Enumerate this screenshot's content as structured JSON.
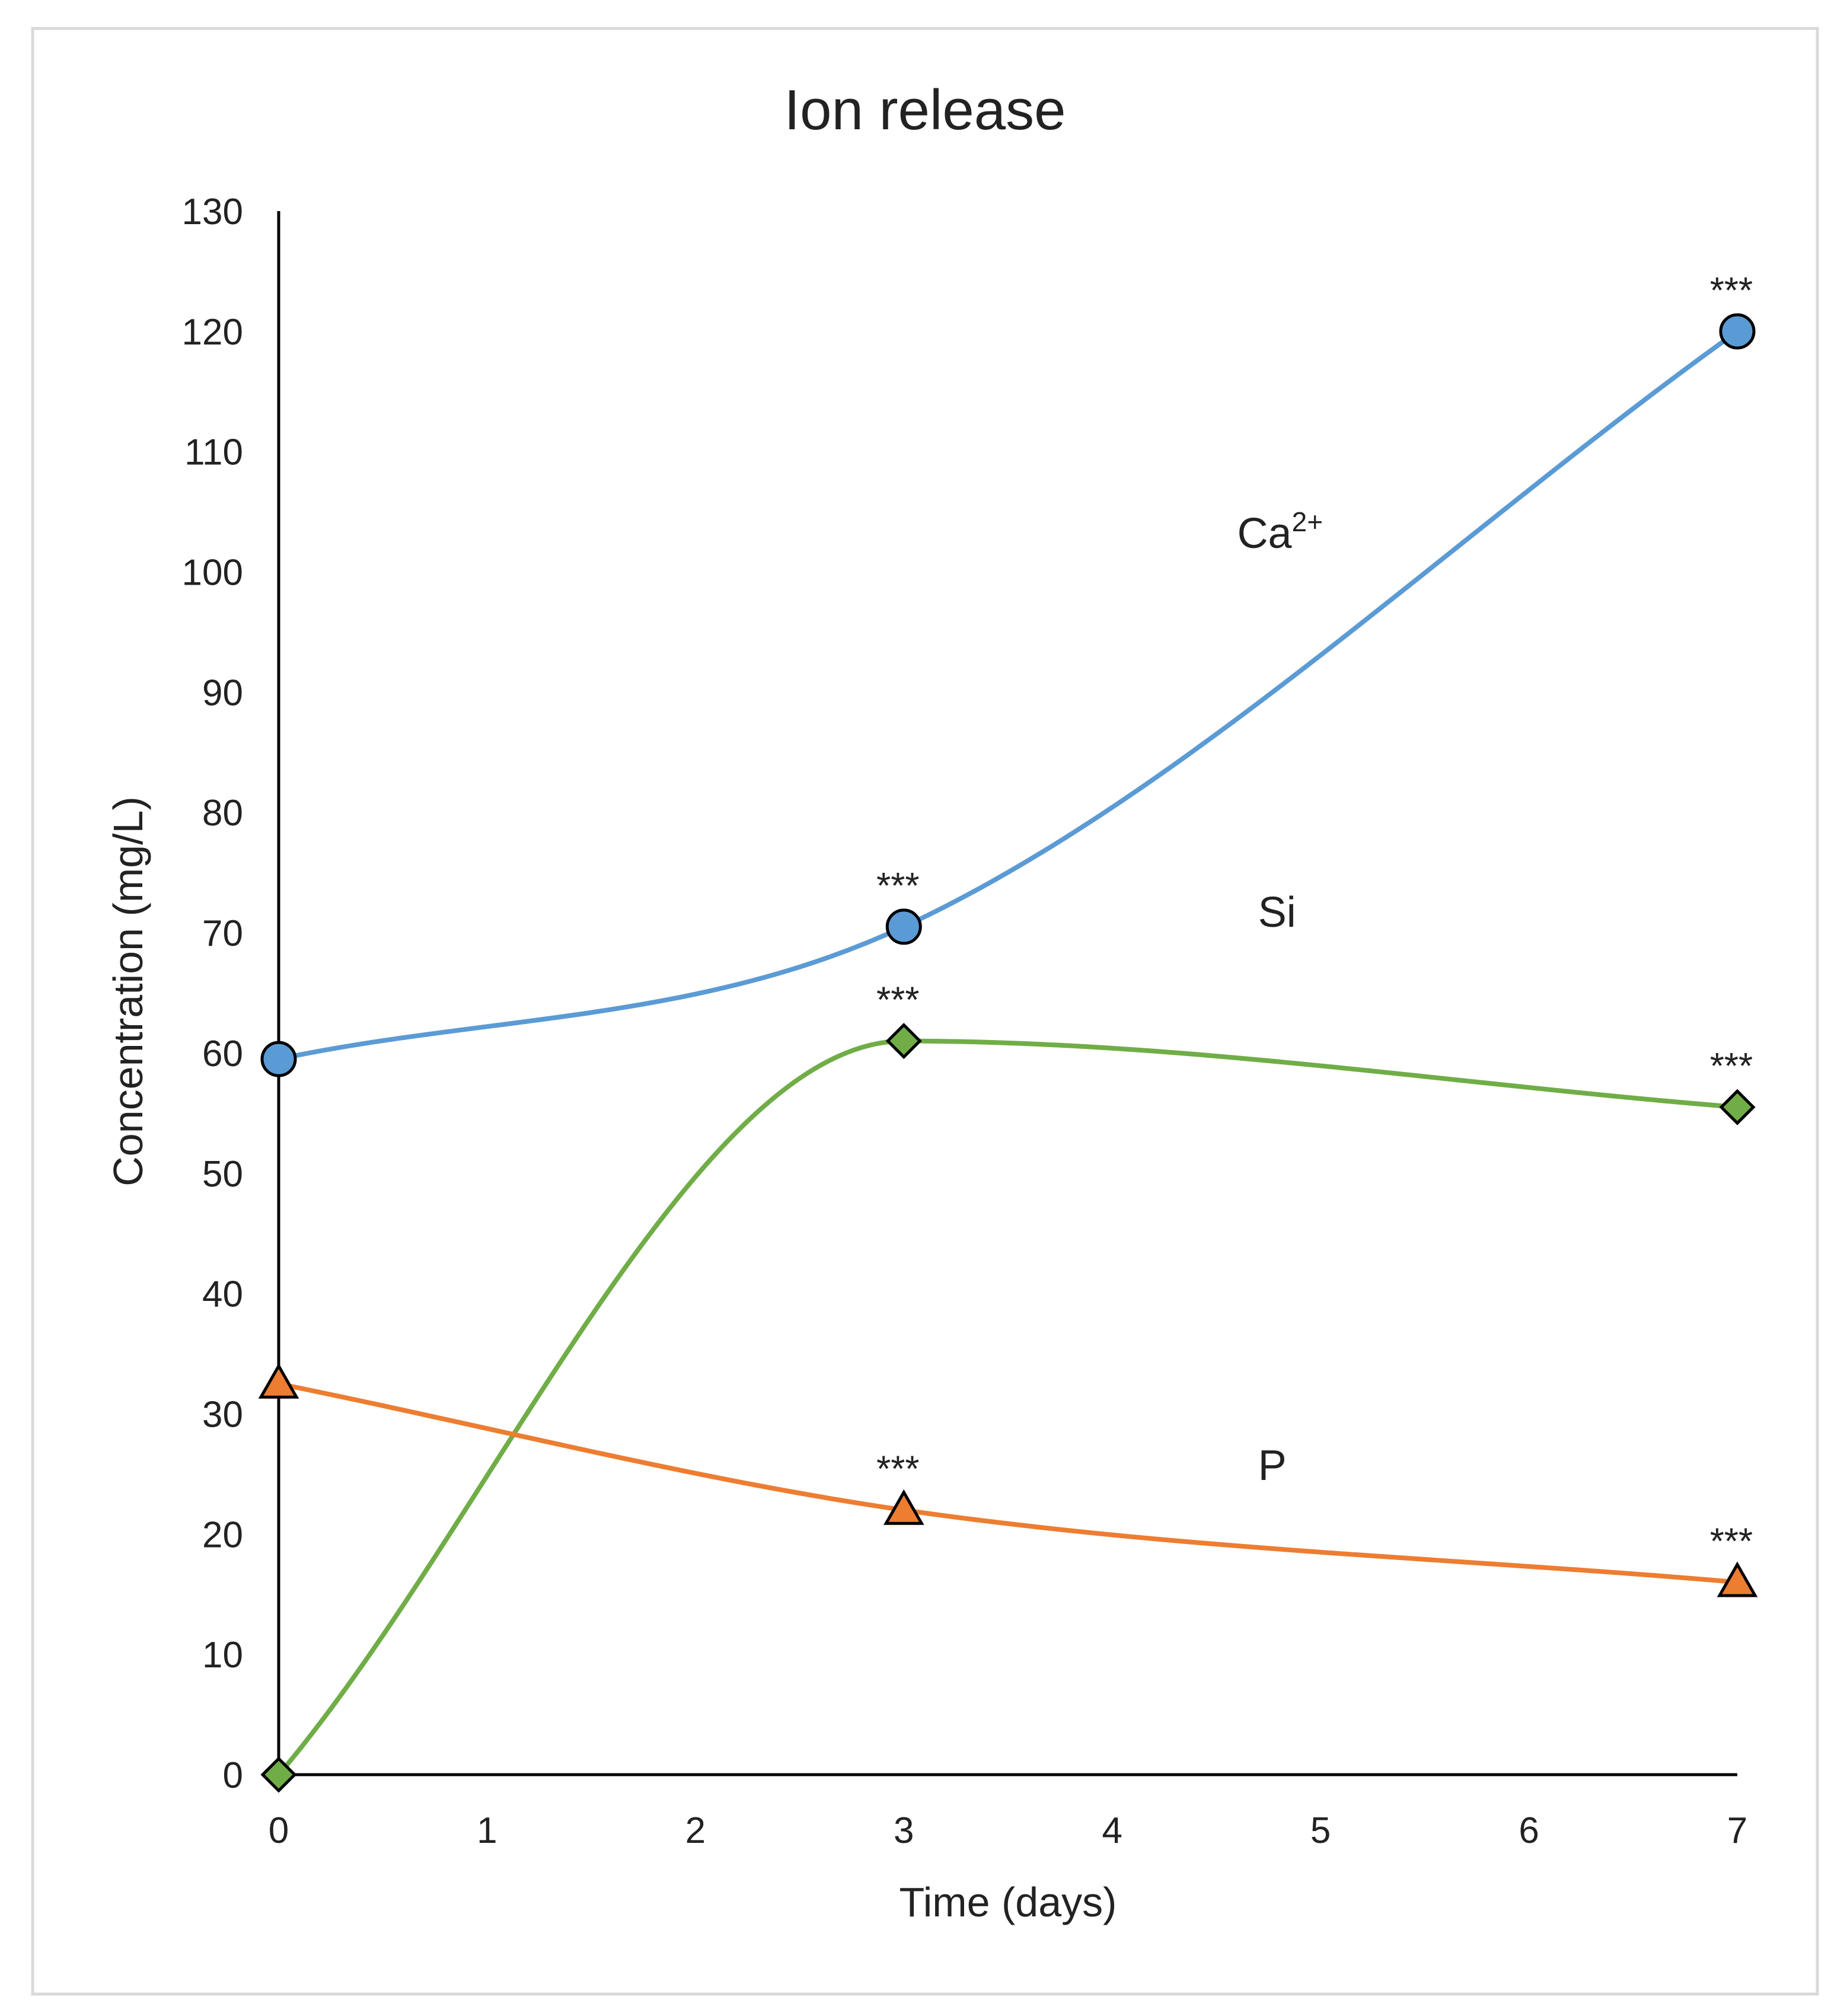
{
  "chart_data": {
    "type": "line",
    "title": "Ion release",
    "xlabel": "Time (days)",
    "ylabel": "Concentration (mg/L)",
    "xlim": [
      0,
      7
    ],
    "ylim": [
      0,
      130
    ],
    "x_ticks": [
      "0",
      "1",
      "2",
      "3",
      "4",
      "5",
      "6",
      "7"
    ],
    "y_ticks": [
      "0",
      "10",
      "20",
      "30",
      "40",
      "50",
      "60",
      "70",
      "80",
      "90",
      "100",
      "110",
      "120",
      "130"
    ],
    "grid": false,
    "legend": "none",
    "series": [
      {
        "name": "Ca",
        "name_superscript": "2+",
        "x": [
          0,
          3,
          7
        ],
        "values": [
          59.5,
          70.5,
          120
        ],
        "marker": "circle",
        "color": "#5b9bd5",
        "significance": [
          "",
          "***",
          "***"
        ],
        "label_anchor": [
          4.6,
          102
        ]
      },
      {
        "name": "Si",
        "x": [
          0,
          3,
          7
        ],
        "values": [
          0,
          61,
          55.5
        ],
        "marker": "diamond",
        "color": "#70ad47",
        "significance": [
          "",
          "***",
          "***"
        ],
        "label_anchor": [
          4.7,
          70.5
        ]
      },
      {
        "name": "P",
        "x": [
          0,
          3,
          7
        ],
        "values": [
          32.5,
          22,
          16
        ],
        "marker": "triangle",
        "color": "#ed7d31",
        "significance": [
          "",
          "***",
          "***"
        ],
        "label_anchor": [
          4.7,
          24.5
        ]
      }
    ]
  }
}
